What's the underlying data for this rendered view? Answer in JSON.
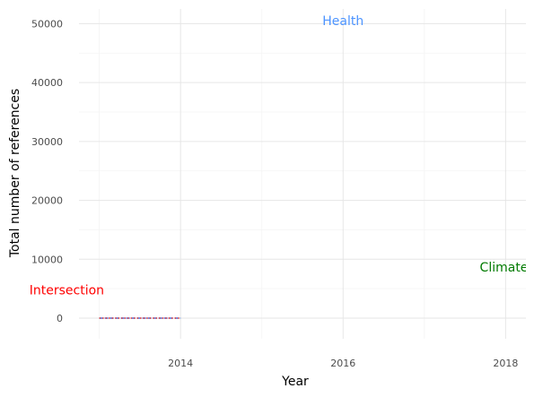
{
  "chart_data": {
    "type": "line",
    "xlabel": "Year",
    "ylabel": "Total number of references",
    "xlim": [
      2012.75,
      2018.25
    ],
    "ylim": [
      -3500,
      52500
    ],
    "x_ticks": [
      2014,
      2016,
      2018
    ],
    "y_ticks": [
      0,
      10000,
      20000,
      30000,
      40000,
      50000
    ],
    "grid": true,
    "series": [
      {
        "x": [
          2013,
          2014
        ],
        "values": [
          0,
          0
        ],
        "color": "#4a6fd9",
        "dash": "dashed"
      },
      {
        "x": [
          2013,
          2014
        ],
        "values": [
          0,
          0
        ],
        "color": "#e53935",
        "dash": "dotted"
      }
    ],
    "annotations": [
      {
        "text": "Health",
        "x": 2016,
        "y": 50500,
        "color": "#4d94ff"
      },
      {
        "text": "Intersection",
        "x": 2012.6,
        "y": 4800,
        "color": "#ff0000"
      },
      {
        "text": "Climate Change",
        "x": 2018.3,
        "y": 8700,
        "color": "#007a00"
      }
    ]
  }
}
